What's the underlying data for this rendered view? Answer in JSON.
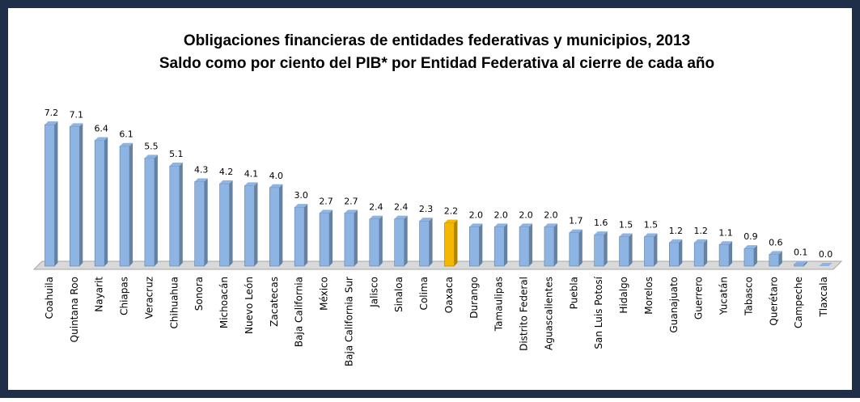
{
  "chart_data": {
    "type": "bar",
    "title": "Obligaciones financieras de entidades federativas y municipios, 2013",
    "subtitle": "Saldo como por ciento del PIB* por Entidad Federativa al cierre de cada año",
    "categories": [
      "Coahuila",
      "Quintana Roo",
      "Nayarit",
      "Chiapas",
      "Veracruz",
      "Chihuahua",
      "Sonora",
      "Michoacán",
      "Nuevo León",
      "Zacatecas",
      "Baja California",
      "México",
      "Baja California Sur",
      "Jalisco",
      "Sinaloa",
      "Colima",
      "Oaxaca",
      "Durango",
      "Tamaulipas",
      "Distrito Federal",
      "Aguascalientes",
      "Puebla",
      "San Luis Potosí",
      "Hidalgo",
      "Morelos",
      "Guanajuato",
      "Guerrero",
      "Yucatán",
      "Tabasco",
      "Querétaro",
      "Campeche",
      "Tlaxcala"
    ],
    "values": [
      7.2,
      7.1,
      6.4,
      6.1,
      5.5,
      5.1,
      4.3,
      4.2,
      4.1,
      4.0,
      3.0,
      2.7,
      2.7,
      2.4,
      2.4,
      2.3,
      2.2,
      2.0,
      2.0,
      2.0,
      2.0,
      1.7,
      1.6,
      1.5,
      1.5,
      1.2,
      1.2,
      1.1,
      0.9,
      0.6,
      0.1,
      0.0
    ],
    "value_labels": [
      "7.2",
      "7.1",
      "6.4",
      "6.1",
      "5.5",
      "5.1",
      "4.3",
      "4.2",
      "4.1",
      "4.0",
      "3.0",
      "2.7",
      "2.7",
      "2.4",
      "2.4",
      "2.3",
      "2.2",
      "2.0",
      "2.0",
      "2.0",
      "2.0",
      "1.7",
      "1.6",
      "1.5",
      "1.5",
      "1.2",
      "1.2",
      "1.1",
      "0.9",
      "0.6",
      "0.1",
      "0.0"
    ],
    "colors": [
      "#8db4e3",
      "#8db4e3",
      "#8db4e3",
      "#8db4e3",
      "#8db4e3",
      "#8db4e3",
      "#8db4e3",
      "#8db4e3",
      "#8db4e3",
      "#8db4e3",
      "#8db4e3",
      "#8db4e3",
      "#8db4e3",
      "#8db4e3",
      "#8db4e3",
      "#8db4e3",
      "#f5b800",
      "#8db4e3",
      "#8db4e3",
      "#8db4e3",
      "#8db4e3",
      "#8db4e3",
      "#8db4e3",
      "#8db4e3",
      "#8db4e3",
      "#8db4e3",
      "#8db4e3",
      "#8db4e3",
      "#8db4e3",
      "#8db4e3",
      "#8db4e3",
      "#8db4e3"
    ]
  }
}
